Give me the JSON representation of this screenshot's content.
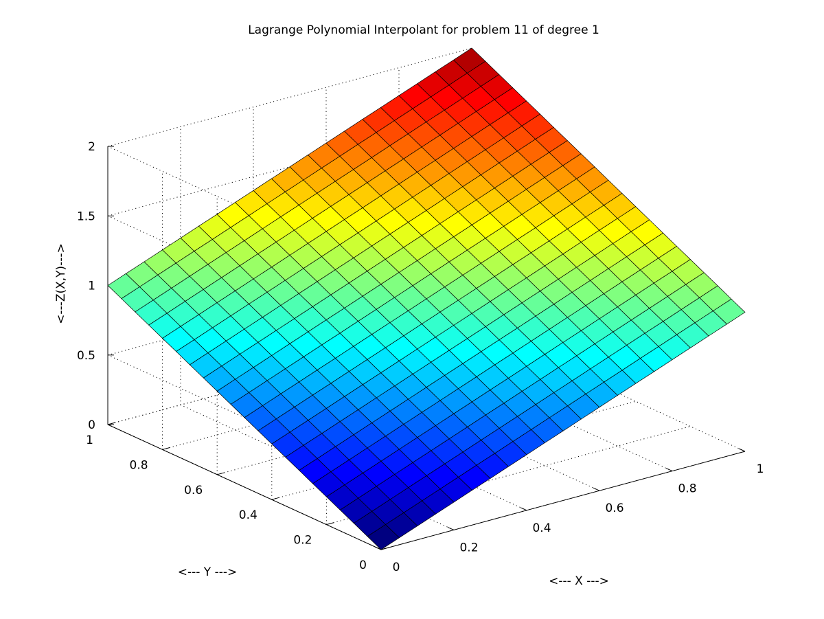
{
  "chart_data": {
    "type": "surface",
    "title": "Lagrange Polynomial Interpolant for problem 11 of degree 1",
    "xlabel": "<--- X --->",
    "ylabel": "<--- Y --->",
    "zlabel": "<---Z(X,Y)--->",
    "xlim": [
      0,
      1
    ],
    "ylim": [
      0,
      1
    ],
    "zlim": [
      0,
      2
    ],
    "x_ticks": [
      {
        "value": 0,
        "label": "0"
      },
      {
        "value": 0.2,
        "label": "0.2"
      },
      {
        "value": 0.4,
        "label": "0.4"
      },
      {
        "value": 0.6,
        "label": "0.6"
      },
      {
        "value": 0.8,
        "label": "0.8"
      },
      {
        "value": 1,
        "label": "1"
      }
    ],
    "y_ticks": [
      {
        "value": 0,
        "label": "0"
      },
      {
        "value": 0.2,
        "label": "0.2"
      },
      {
        "value": 0.4,
        "label": "0.4"
      },
      {
        "value": 0.6,
        "label": "0.6"
      },
      {
        "value": 0.8,
        "label": "0.8"
      },
      {
        "value": 1,
        "label": "1"
      }
    ],
    "z_ticks": [
      {
        "value": 0,
        "label": "0"
      },
      {
        "value": 0.5,
        "label": "0.5"
      },
      {
        "value": 1,
        "label": "1"
      },
      {
        "value": 1.5,
        "label": "1.5"
      },
      {
        "value": 2,
        "label": "2"
      }
    ],
    "grid": true,
    "colormap": "jet",
    "mesh_divisions": 20,
    "surface": {
      "function": "Z(X,Y) = X + Y",
      "corner_values": [
        {
          "x": 0,
          "y": 0,
          "z": 0
        },
        {
          "x": 1,
          "y": 0,
          "z": 1
        },
        {
          "x": 0,
          "y": 1,
          "z": 1
        },
        {
          "x": 1,
          "y": 1,
          "z": 2
        }
      ]
    }
  }
}
